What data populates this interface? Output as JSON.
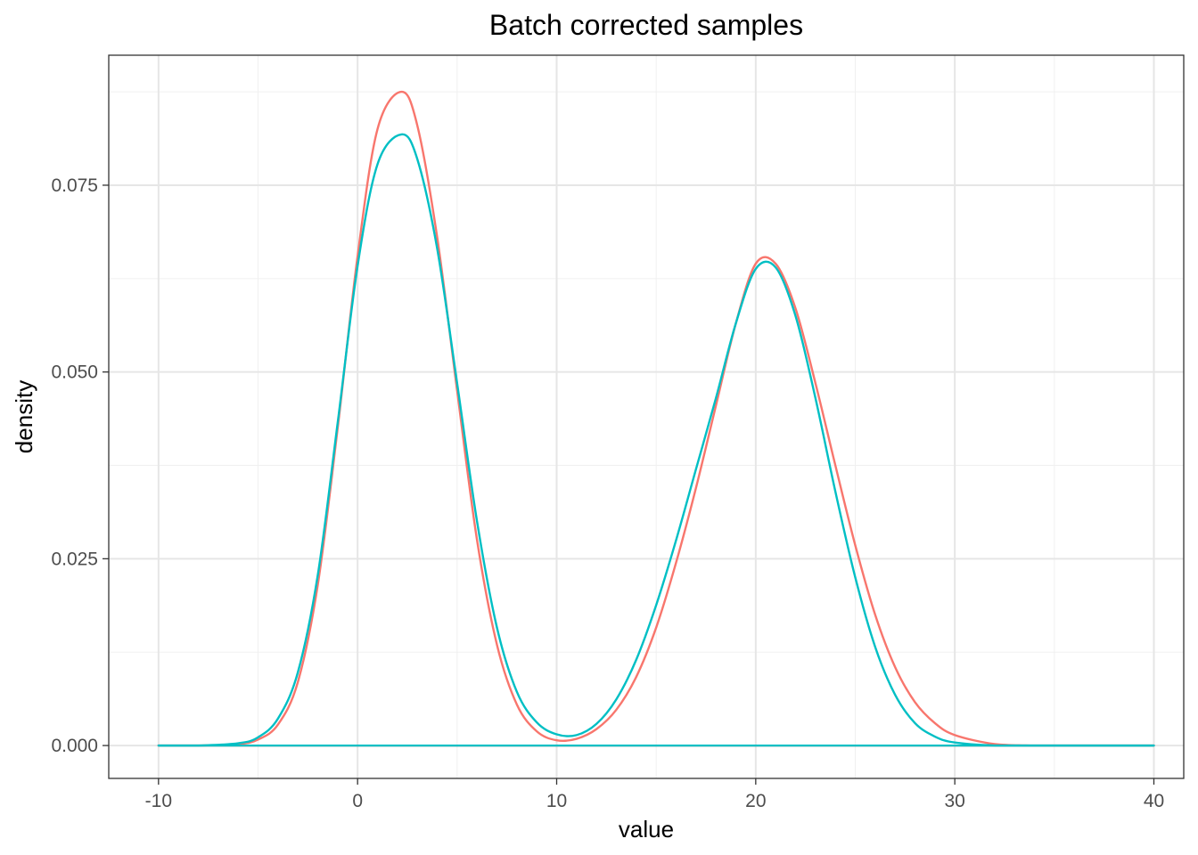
{
  "chart_data": {
    "type": "line",
    "title": "Batch corrected samples",
    "xlabel": "value",
    "ylabel": "density",
    "xlim": [
      -12.5,
      41.5
    ],
    "ylim": [
      -0.0044,
      0.0924
    ],
    "x_ticks": [
      -10,
      0,
      10,
      20,
      30,
      40
    ],
    "x_tick_labels": [
      "-10",
      "0",
      "10",
      "20",
      "30",
      "40"
    ],
    "y_ticks": [
      0,
      0.025,
      0.05,
      0.075
    ],
    "y_tick_labels": [
      "0.000",
      "0.025",
      "0.050",
      "0.075"
    ],
    "grid": true,
    "legend": "none",
    "series": [
      {
        "color": "#F8766D",
        "x": [
          -10,
          -8,
          -6,
          -5,
          -4,
          -3,
          -2,
          -1,
          0,
          1,
          2.2,
          3,
          4,
          5,
          6,
          7,
          8,
          9,
          10,
          11,
          12,
          13,
          14,
          15,
          16,
          17,
          18,
          19,
          20,
          21,
          22,
          23,
          24,
          25,
          26,
          27,
          28,
          29,
          30,
          32,
          34,
          36,
          38,
          40
        ],
        "y": [
          0.0,
          0.0,
          0.0002,
          0.0008,
          0.0028,
          0.0085,
          0.0215,
          0.0425,
          0.0655,
          0.0825,
          0.0875,
          0.083,
          0.068,
          0.0475,
          0.0275,
          0.0135,
          0.0055,
          0.0019,
          0.0007,
          0.0009,
          0.0022,
          0.0048,
          0.0092,
          0.0158,
          0.0245,
          0.0345,
          0.0455,
          0.0565,
          0.0645,
          0.0645,
          0.0585,
          0.0485,
          0.0375,
          0.0268,
          0.0175,
          0.0105,
          0.0058,
          0.003,
          0.0014,
          0.0002,
          0.0,
          0.0,
          0.0,
          0.0
        ]
      },
      {
        "color": "#00BFC4",
        "x": [
          -10,
          -8,
          -6,
          -5,
          -4,
          -3,
          -2,
          -1,
          0,
          1,
          2.2,
          3,
          4,
          5,
          6,
          7,
          8,
          9,
          10,
          11,
          12,
          13,
          14,
          15,
          16,
          17,
          18,
          19,
          20,
          21,
          22,
          23,
          24,
          25,
          26,
          27,
          28,
          29,
          30,
          32,
          34,
          36,
          38,
          40
        ],
        "y": [
          0.0,
          0.0,
          0.0003,
          0.0011,
          0.0036,
          0.0098,
          0.0228,
          0.0432,
          0.0642,
          0.0778,
          0.0818,
          0.0785,
          0.0665,
          0.0485,
          0.03,
          0.0158,
          0.0072,
          0.0031,
          0.0015,
          0.0014,
          0.0029,
          0.0062,
          0.0115,
          0.0188,
          0.0275,
          0.037,
          0.0465,
          0.0565,
          0.0638,
          0.064,
          0.0575,
          0.0465,
          0.034,
          0.0225,
          0.0132,
          0.0068,
          0.003,
          0.0012,
          0.0004,
          0.0,
          0.0,
          0.0,
          0.0,
          0.0
        ]
      }
    ]
  }
}
